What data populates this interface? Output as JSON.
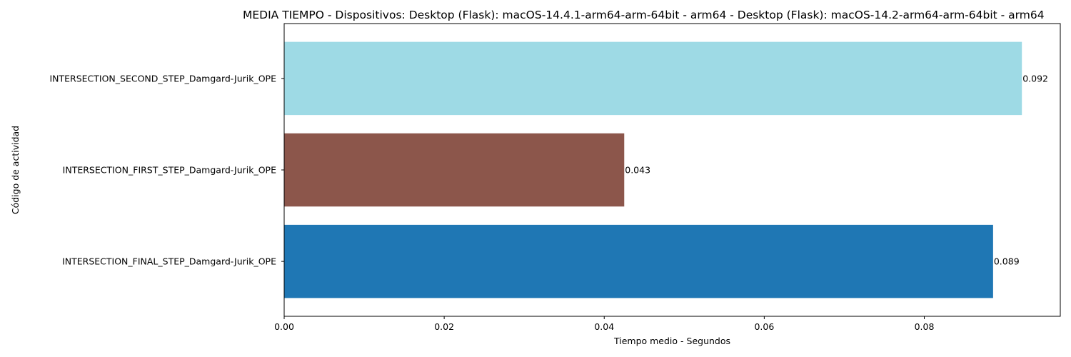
{
  "chart_data": {
    "type": "bar",
    "orientation": "horizontal",
    "title": "MEDIA TIEMPO - Dispositivos: Desktop (Flask): macOS-14.4.1-arm64-arm-64bit - arm64 - Desktop (Flask): macOS-14.2-arm64-arm-64bit - arm64",
    "xlabel": "Tiempo medio - Segundos",
    "ylabel": "Código de actividad",
    "categories": [
      "INTERSECTION_FINAL_STEP_Damgard-Jurik_OPE",
      "INTERSECTION_FIRST_STEP_Damgard-Jurik_OPE",
      "INTERSECTION_SECOND_STEP_Damgard-Jurik_OPE"
    ],
    "values": [
      0.0886,
      0.0425,
      0.0922
    ],
    "value_labels": [
      "0.089",
      "0.043",
      "0.092"
    ],
    "colors": [
      "#1f77b4",
      "#8c564b",
      "#9edae5"
    ],
    "xlim": [
      0,
      0.097
    ],
    "xticks": [
      0.0,
      0.02,
      0.04,
      0.06,
      0.08
    ],
    "xtick_labels": [
      "0.00",
      "0.02",
      "0.04",
      "0.06",
      "0.08"
    ],
    "grid": false,
    "legend": "none"
  }
}
